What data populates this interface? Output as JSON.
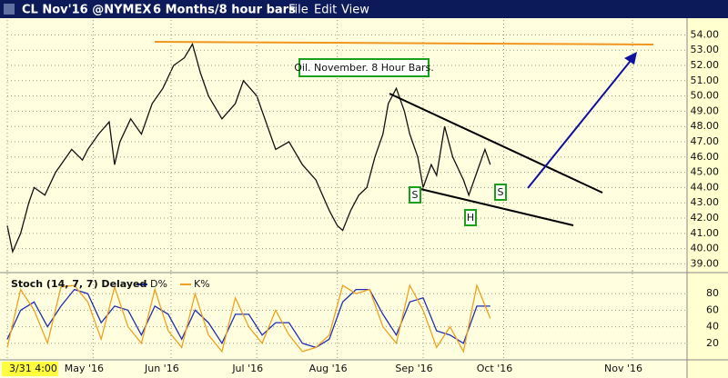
{
  "header": {
    "symbol": "CL Nov'16 @NYMEX",
    "period": "6 Months/8 hour bars",
    "menu": [
      "File",
      "Edit",
      "View"
    ]
  },
  "chart_data": [
    {
      "type": "line",
      "annotations": [
        "Oil. November. 8 Hour Bars.",
        "S",
        "H",
        "S"
      ],
      "x": [
        0,
        2,
        5,
        8,
        10,
        14,
        18,
        20,
        24,
        28,
        30,
        34,
        38,
        40,
        42,
        46,
        50,
        54,
        58,
        62,
        66,
        69,
        72,
        75,
        80,
        85,
        88,
        93,
        97,
        100,
        105,
        110,
        115,
        120,
        123,
        125,
        128,
        131,
        134,
        137,
        140,
        142,
        145,
        148,
        150,
        153,
        155,
        158,
        160,
        163,
        166,
        170,
        172,
        175,
        178,
        180
      ],
      "values": [
        41.5,
        39.8,
        41,
        43,
        44,
        43.5,
        45,
        45.5,
        46.5,
        45.8,
        46.5,
        47.5,
        48.3,
        45.5,
        47,
        48.5,
        47.5,
        49.5,
        50.5,
        52,
        52.5,
        53.4,
        51.5,
        50,
        48.5,
        49.5,
        51,
        50,
        48,
        46.5,
        47,
        45.5,
        44.5,
        42.5,
        41.5,
        41.2,
        42.5,
        43.5,
        44,
        46,
        47.5,
        49.5,
        50.5,
        49,
        47.5,
        46,
        44,
        45.5,
        44.8,
        48,
        46,
        44.5,
        43.5,
        45,
        46.5,
        45.5
      ],
      "color": "#111111",
      "xlim": [
        0,
        253
      ],
      "ylim": [
        38.4,
        54.5
      ],
      "yticks": [
        {
          "value": 39,
          "label": "39.00"
        },
        {
          "value": 40,
          "label": "40.00"
        },
        {
          "value": 41,
          "label": "41.00"
        },
        {
          "value": 42,
          "label": "42.00"
        },
        {
          "value": 43,
          "label": "43.00"
        },
        {
          "value": 44,
          "label": "44.00"
        },
        {
          "value": 45,
          "label": "45.00"
        },
        {
          "value": 46,
          "label": "46.00"
        },
        {
          "value": 47,
          "label": "47.00"
        },
        {
          "value": 48,
          "label": "48.00"
        },
        {
          "value": 49,
          "label": "49.00"
        },
        {
          "value": 50,
          "label": "50.00"
        },
        {
          "value": 51,
          "label": "51.00"
        },
        {
          "value": 52,
          "label": "52.00"
        },
        {
          "value": 53,
          "label": "53.00"
        },
        {
          "value": 54,
          "label": "54.00"
        }
      ],
      "grid": true
    },
    {
      "type": "line",
      "title": "Stoch (14, 7, 7) Delayed",
      "x": [
        0,
        5,
        10,
        15,
        20,
        25,
        30,
        35,
        40,
        45,
        50,
        55,
        60,
        65,
        70,
        75,
        80,
        85,
        90,
        95,
        100,
        105,
        110,
        115,
        120,
        125,
        130,
        135,
        140,
        145,
        150,
        155,
        160,
        165,
        170,
        175,
        180
      ],
      "series": [
        {
          "name": "D%",
          "color": "#1f2fb0",
          "values": [
            25,
            60,
            70,
            40,
            65,
            85,
            80,
            45,
            65,
            60,
            30,
            65,
            55,
            25,
            60,
            45,
            20,
            55,
            55,
            30,
            45,
            45,
            20,
            15,
            25,
            70,
            85,
            85,
            55,
            30,
            70,
            75,
            35,
            30,
            20,
            65,
            65
          ]
        },
        {
          "name": "K%",
          "color": "#f0a020",
          "values": [
            15,
            85,
            60,
            20,
            88,
            90,
            70,
            25,
            88,
            40,
            20,
            85,
            35,
            15,
            80,
            30,
            10,
            75,
            40,
            20,
            60,
            30,
            10,
            15,
            30,
            90,
            80,
            85,
            40,
            20,
            90,
            60,
            15,
            40,
            10,
            90,
            50
          ]
        }
      ],
      "xlim": [
        0,
        253
      ],
      "ylim": [
        0,
        100
      ],
      "yticks": [
        20,
        40,
        60,
        80
      ],
      "xticks": [
        {
          "value": 0,
          "label": "3/31 4:00"
        },
        {
          "value": 32,
          "label": "May '16"
        },
        {
          "value": 61,
          "label": "Jun '16"
        },
        {
          "value": 93,
          "label": "Jul '16"
        },
        {
          "value": 123,
          "label": "Aug '16"
        },
        {
          "value": 155,
          "label": "Sep '16"
        },
        {
          "value": 185,
          "label": "Oct '16"
        },
        {
          "value": 233,
          "label": "Nov '16"
        }
      ],
      "grid": true
    }
  ]
}
